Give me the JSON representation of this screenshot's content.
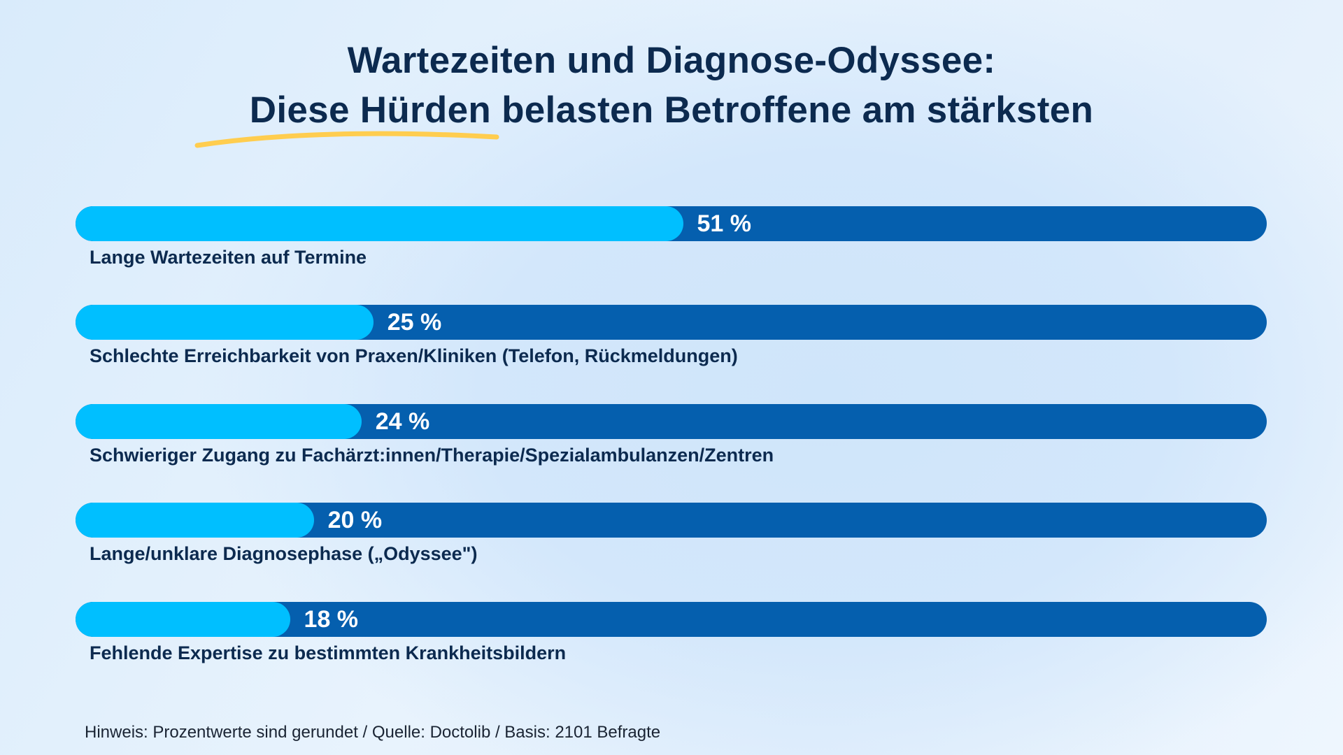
{
  "chart_data": {
    "type": "bar",
    "orientation": "horizontal",
    "title": "Wartezeiten und Diagnose-Odyssee:",
    "subtitle": "Diese Hürden belasten Betroffene am stärksten",
    "xlim": [
      0,
      100
    ],
    "unit": "%",
    "categories": [
      "Lange Wartezeiten auf Termine",
      "Schlechte Erreichbarkeit von Praxen/Kliniken (Telefon, Rückmeldungen)",
      "Schwieriger Zugang zu Fachärzt:innen/Therapie/Spezialambulanzen/Zentren",
      "Lange/unklare Diagnosephase („Odyssee\")",
      "Fehlende Expertise zu bestimmten Krankheitsbildern"
    ],
    "values": [
      51,
      25,
      24,
      20,
      18
    ],
    "value_labels": [
      "51 %",
      "25 %",
      "24 %",
      "20 %",
      "18 %"
    ],
    "colors": {
      "fill": "#00bfff",
      "track": "#055fae",
      "title": "#0c2a4f",
      "underline": "#ffcd4f"
    },
    "grid": false,
    "footnote": "Hinweis: Prozentwerte sind gerundet / Quelle: Doctolib / Basis: 2101 Befragte"
  }
}
